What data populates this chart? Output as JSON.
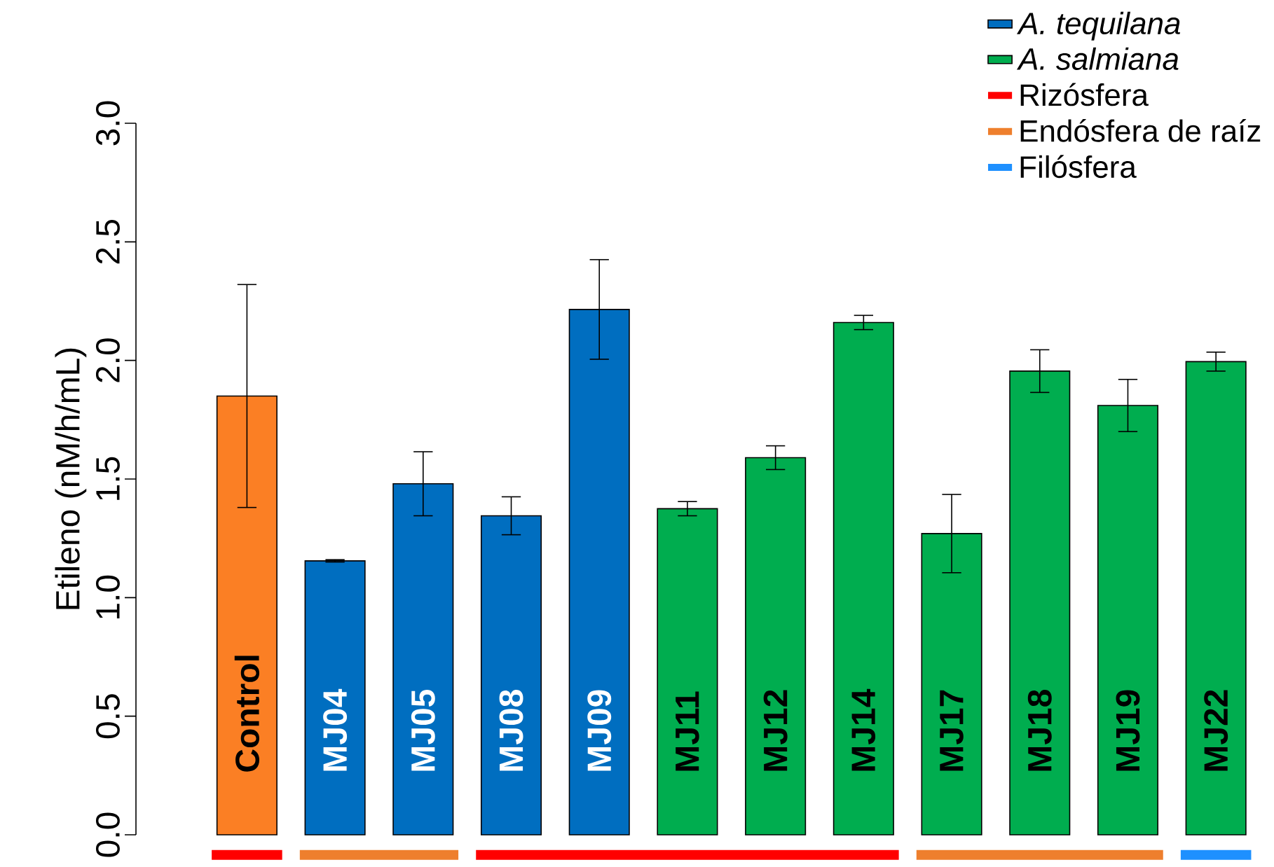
{
  "chart_data": {
    "type": "bar",
    "ylabel": "Etileno (nM/h/mL)",
    "categories": [
      "Control",
      "MJ04",
      "MJ05",
      "MJ08",
      "MJ09",
      "MJ11",
      "MJ12",
      "MJ14",
      "MJ17",
      "MJ18",
      "MJ19",
      "MJ22"
    ],
    "series": [
      {
        "color": "#fb7f24",
        "values": [
          1.85,
          null,
          null,
          null,
          null,
          null,
          null,
          null,
          null,
          null,
          null,
          null
        ],
        "errors": [
          0.47,
          null,
          null,
          null,
          null,
          null,
          null,
          null,
          null,
          null,
          null,
          null
        ]
      },
      {
        "name": "*A. tequilana*",
        "color": "#006ec0",
        "values": [
          null,
          1.155,
          1.48,
          1.345,
          2.215,
          null,
          null,
          null,
          null,
          null,
          null,
          null
        ],
        "errors": [
          null,
          0.005,
          0.135,
          0.08,
          0.21,
          null,
          null,
          null,
          null,
          null,
          null,
          null
        ]
      },
      {
        "name": "*A. salmiana*",
        "color": "#00ad4f",
        "values": [
          null,
          null,
          null,
          null,
          null,
          1.375,
          1.59,
          2.16,
          1.27,
          1.955,
          1.81,
          1.995
        ],
        "errors": [
          null,
          null,
          null,
          null,
          null,
          0.03,
          0.05,
          0.03,
          0.165,
          0.09,
          0.11,
          0.04
        ]
      }
    ],
    "ylim": [
      0,
      3
    ],
    "yticks": [
      {
        "value": 0,
        "label": "0.0"
      },
      {
        "value": 0.5,
        "label": "0.5"
      },
      {
        "value": 1,
        "label": "1.0"
      },
      {
        "value": 1.5,
        "label": "1.5"
      },
      {
        "value": 2,
        "label": "2.0"
      },
      {
        "value": 2.5,
        "label": "2.5"
      },
      {
        "value": 3,
        "label": "3.0"
      }
    ],
    "annotations": [
      "Rizósfera",
      "Endósfera de raíz",
      "Filósfera"
    ],
    "legend": "top right",
    "tick_labels": "y",
    "data_labels": false
  }
}
